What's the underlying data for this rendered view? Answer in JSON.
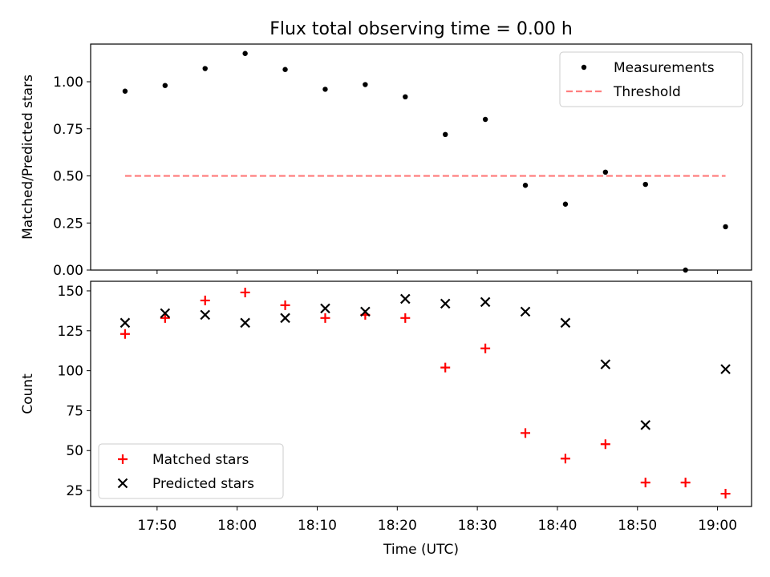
{
  "chart_data": [
    {
      "type": "scatter",
      "title": "Flux total observing time = 0.00 h",
      "xlabel": "",
      "ylabel": "Matched/Predicted stars",
      "ylim": [
        0,
        1.2
      ],
      "yticks": [
        0.0,
        0.25,
        0.5,
        0.75,
        1.0
      ],
      "ytick_labels": [
        "0.00",
        "0.25",
        "0.50",
        "0.75",
        "1.00"
      ],
      "legend_position": "top-right",
      "x": [
        "17:46",
        "17:51",
        "17:56",
        "18:01",
        "18:06",
        "18:11",
        "18:16",
        "18:21",
        "18:26",
        "18:31",
        "18:36",
        "18:41",
        "18:46",
        "18:51",
        "18:56",
        "19:01"
      ],
      "series": [
        {
          "name": "Measurements",
          "marker": "dot",
          "color": "#000000",
          "values": [
            0.95,
            0.98,
            1.07,
            1.15,
            1.065,
            0.96,
            0.985,
            0.92,
            0.72,
            0.8,
            0.45,
            0.35,
            0.52,
            0.455,
            0.0,
            0.23
          ]
        },
        {
          "name": "Threshold",
          "marker": "dashed-line",
          "color": "#ff7f7f",
          "x": [
            "17:46",
            "19:01"
          ],
          "values": [
            0.5,
            0.5
          ]
        }
      ]
    },
    {
      "type": "scatter",
      "title": "",
      "xlabel": "Time (UTC)",
      "ylabel": "Count",
      "ylim": [
        15,
        156
      ],
      "yticks": [
        25,
        50,
        75,
        100,
        125,
        150
      ],
      "ytick_labels": [
        "25",
        "50",
        "75",
        "100",
        "125",
        "150"
      ],
      "xticks": [
        "17:50",
        "18:00",
        "18:10",
        "18:20",
        "18:30",
        "18:40",
        "18:50",
        "19:00"
      ],
      "legend_position": "bottom-left",
      "x": [
        "17:46",
        "17:51",
        "17:56",
        "18:01",
        "18:06",
        "18:11",
        "18:16",
        "18:21",
        "18:26",
        "18:31",
        "18:36",
        "18:41",
        "18:46",
        "18:51",
        "18:56",
        "19:01"
      ],
      "series": [
        {
          "name": "Matched stars",
          "marker": "plus",
          "color": "#ff0000",
          "values": [
            123,
            133,
            144,
            149,
            141,
            133,
            135,
            133,
            102,
            114,
            61,
            45,
            54,
            30,
            30,
            23
          ]
        },
        {
          "name": "Predicted stars",
          "marker": "x",
          "color": "#000000",
          "x": [
            "17:46",
            "17:51",
            "17:56",
            "18:01",
            "18:06",
            "18:11",
            "18:16",
            "18:21",
            "18:26",
            "18:31",
            "18:36",
            "18:41",
            "18:46",
            "18:51",
            "19:01"
          ],
          "values": [
            130,
            136,
            135,
            130,
            133,
            139,
            137,
            145,
            142,
            143,
            137,
            130,
            104,
            66,
            101
          ]
        }
      ]
    }
  ]
}
